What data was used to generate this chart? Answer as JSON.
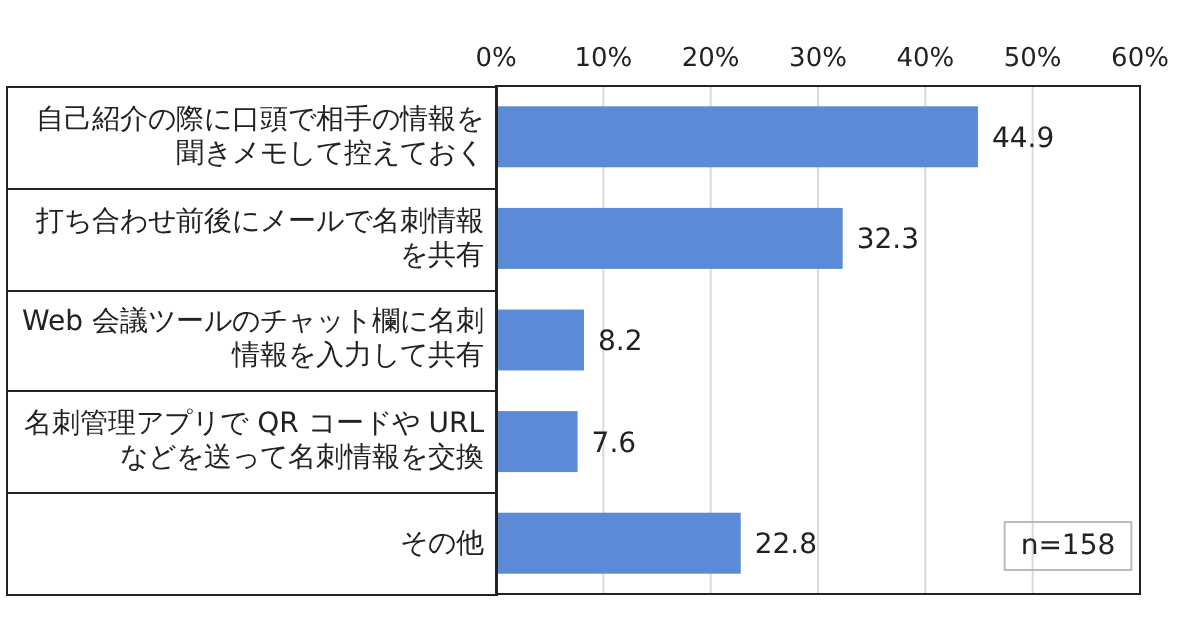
{
  "chart_data": {
    "type": "bar",
    "orientation": "horizontal",
    "categories": [
      "自己紹介の際に口頭で相手の情報を聞きメモして控えておく",
      "打ち合わせ前後にメールで名刺情報を共有",
      "Web 会議ツールのチャット欄に名刺情報を入力して共有",
      "名刺管理アプリで QR コードや URL などを送って名刺情報を交換",
      "その他"
    ],
    "values": [
      44.9,
      32.3,
      8.2,
      7.6,
      22.8
    ],
    "color": "#5b8bd6",
    "xlim": [
      0,
      60
    ],
    "xticks": [
      {
        "value": 0,
        "label": "0%"
      },
      {
        "value": 10,
        "label": "10%"
      },
      {
        "value": 20,
        "label": "20%"
      },
      {
        "value": 30,
        "label": "30%"
      },
      {
        "value": 40,
        "label": "40%"
      },
      {
        "value": 50,
        "label": "50%"
      },
      {
        "value": 60,
        "label": "60%"
      }
    ],
    "grid": "x",
    "data_labels": true,
    "annotations": [
      "n=158"
    ]
  }
}
